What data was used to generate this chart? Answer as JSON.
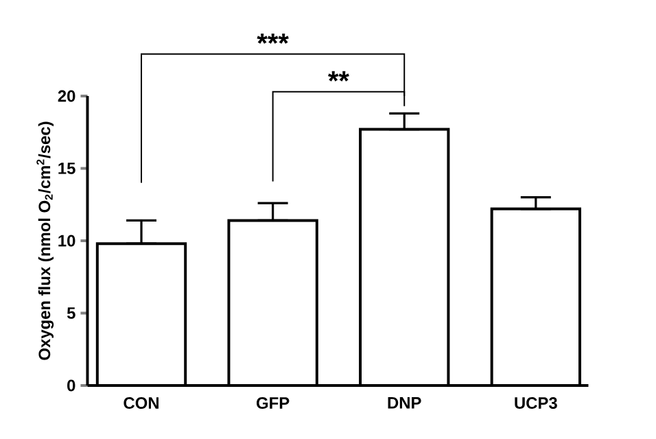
{
  "chart_data": {
    "type": "bar",
    "ylabel": "Oxygen flux (nmol O$_{2}$/cm$^{2}$/sec)",
    "categories": [
      "CON",
      "GFP",
      "DNP",
      "UCP3"
    ],
    "values": [
      9.8,
      11.4,
      17.7,
      12.2
    ],
    "errors": [
      [
        9.8,
        11.4
      ],
      [
        11.4,
        12.6
      ],
      [
        17.7,
        18.8
      ],
      [
        12.2,
        13.0
      ]
    ],
    "color": "#ffffff",
    "ylim": [
      0,
      20
    ],
    "yticks": [
      0,
      5,
      10,
      15,
      20
    ],
    "grid": false,
    "annotations": [
      "***",
      "**"
    ]
  }
}
